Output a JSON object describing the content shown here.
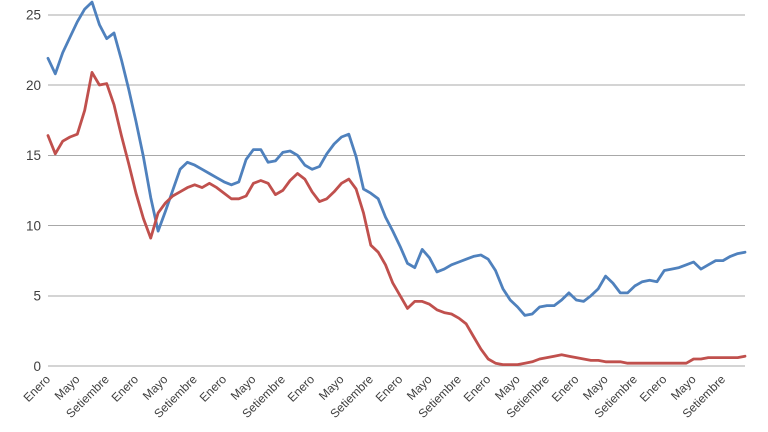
{
  "chart_data": {
    "type": "line",
    "title": "",
    "subtitle": "",
    "legend": "none",
    "grid": "horizontal-only",
    "background": "#ffffff",
    "gridline_color": "#a8a8a8",
    "axis_text_color": "#3f3f3f",
    "n_points": 96,
    "x_axis": {
      "label": "",
      "unit": "month",
      "tick_rotation_degrees": -45,
      "tick_labels": [
        "Enero",
        "Mayo",
        "Setiembre",
        "Enero",
        "Mayo",
        "Setiembre",
        "Enero",
        "Mayo",
        "Setiembre",
        "Enero",
        "Mayo",
        "Setiembre",
        "Enero",
        "Mayo",
        "Setiembre",
        "Enero",
        "Mayo",
        "Setiembre",
        "Enero",
        "Mayo",
        "Setiembre",
        "Enero",
        "Mayo",
        "Setiembre"
      ],
      "tick_month_indices": [
        0,
        4,
        8,
        12,
        16,
        20,
        24,
        28,
        32,
        36,
        40,
        44,
        48,
        52,
        56,
        60,
        64,
        68,
        72,
        76,
        80,
        84,
        88,
        92
      ]
    },
    "y_axis": {
      "label": "",
      "ticks": [
        0,
        5,
        10,
        15,
        20,
        25
      ],
      "range": [
        0,
        26.05
      ]
    },
    "series": [
      {
        "name": "blue-series",
        "color": "#4F81BD",
        "values": [
          21.9,
          20.8,
          22.3,
          23.4,
          24.5,
          25.4,
          25.9,
          24.3,
          23.3,
          23.7,
          21.8,
          19.7,
          17.4,
          14.9,
          12.0,
          9.6,
          11.0,
          12.5,
          14.0,
          14.5,
          14.3,
          14.0,
          13.7,
          13.4,
          13.1,
          12.9,
          13.1,
          14.7,
          15.4,
          15.4,
          14.5,
          14.6,
          15.2,
          15.3,
          15.0,
          14.3,
          14.0,
          14.2,
          15.1,
          15.8,
          16.3,
          16.5,
          14.9,
          12.6,
          12.3,
          11.9,
          10.6,
          9.6,
          8.5,
          7.3,
          7.0,
          8.3,
          7.7,
          6.7,
          6.9,
          7.2,
          7.4,
          7.6,
          7.8,
          7.9,
          7.6,
          6.8,
          5.5,
          4.7,
          4.2,
          3.6,
          3.7,
          4.2,
          4.3,
          4.3,
          4.7,
          5.2,
          4.7,
          4.6,
          5.0,
          5.5,
          6.4,
          5.9,
          5.2,
          5.2,
          5.7,
          6.0,
          6.1,
          6.0,
          6.8,
          6.9,
          7.0,
          7.2,
          7.4,
          6.9,
          7.2,
          7.5,
          7.5,
          7.8,
          8.0,
          8.1
        ]
      },
      {
        "name": "red-series",
        "color": "#C0504D",
        "values": [
          16.4,
          15.1,
          16.0,
          16.3,
          16.5,
          18.2,
          20.9,
          20.0,
          20.1,
          18.6,
          16.4,
          14.4,
          12.3,
          10.5,
          9.1,
          10.9,
          11.6,
          12.1,
          12.4,
          12.7,
          12.9,
          12.7,
          13.0,
          12.7,
          12.3,
          11.9,
          11.9,
          12.1,
          13.0,
          13.2,
          13.0,
          12.2,
          12.5,
          13.2,
          13.7,
          13.3,
          12.4,
          11.7,
          11.9,
          12.4,
          13.0,
          13.3,
          12.6,
          10.9,
          8.6,
          8.1,
          7.2,
          5.9,
          5.0,
          4.1,
          4.6,
          4.6,
          4.4,
          4.0,
          3.8,
          3.7,
          3.4,
          3.0,
          2.1,
          1.2,
          0.5,
          0.2,
          0.1,
          0.1,
          0.1,
          0.2,
          0.3,
          0.5,
          0.6,
          0.7,
          0.8,
          0.7,
          0.6,
          0.5,
          0.4,
          0.4,
          0.3,
          0.3,
          0.3,
          0.2,
          0.2,
          0.2,
          0.2,
          0.2,
          0.2,
          0.2,
          0.2,
          0.2,
          0.5,
          0.5,
          0.6,
          0.6,
          0.6,
          0.6,
          0.6,
          0.7
        ]
      }
    ]
  }
}
